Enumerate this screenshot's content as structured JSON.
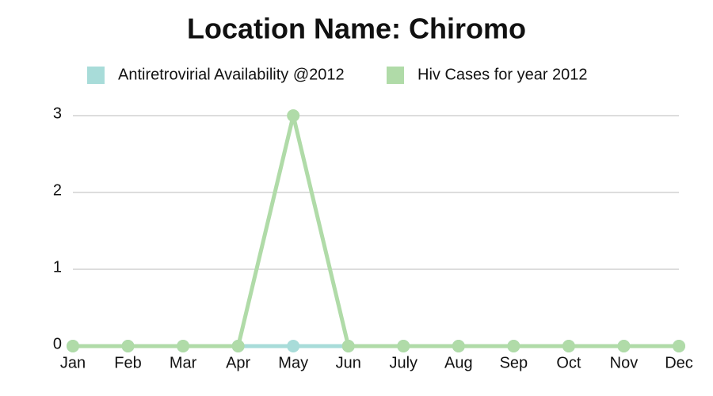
{
  "chart_data": {
    "type": "line",
    "title": "Location Name: Chiromo",
    "categories": [
      "Jan",
      "Feb",
      "Mar",
      "Apr",
      "May",
      "Jun",
      "July",
      "Aug",
      "Sep",
      "Oct",
      "Nov",
      "Dec"
    ],
    "series": [
      {
        "name": "Antiretrovirial Availability @2012",
        "color": "#a8dcd9",
        "values": [
          0,
          0,
          0,
          0,
          0,
          0,
          0,
          0,
          0,
          0,
          0,
          0
        ]
      },
      {
        "name": "Hiv Cases for year 2012",
        "color": "#b0dba8",
        "values": [
          0,
          0,
          0,
          0,
          3,
          0,
          0,
          0,
          0,
          0,
          0,
          0
        ]
      }
    ],
    "ylim": [
      0,
      3
    ],
    "yticks": [
      0,
      1,
      2,
      3
    ],
    "grid": true
  }
}
